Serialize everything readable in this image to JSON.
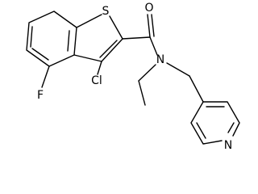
{
  "atoms": [
    "S",
    "O",
    "N",
    "Cl",
    "F",
    "N"
  ]
}
